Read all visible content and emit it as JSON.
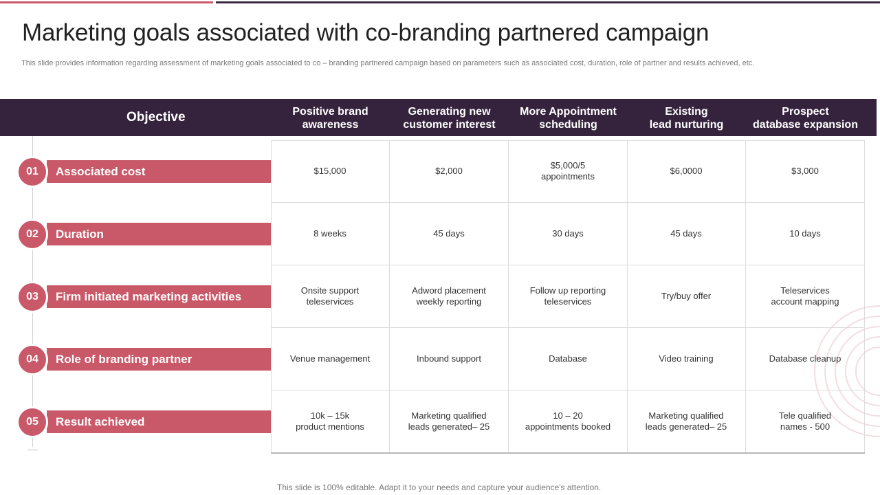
{
  "slide": {
    "title": "Marketing goals associated with co-branding partnered campaign",
    "subtitle": "This slide provides information regarding assessment of marketing goals associated to co – branding partnered campaign based on parameters such as associated cost, duration, role of partner and results achieved, etc.",
    "footer": "This slide is 100% editable. Adapt it to your needs and capture your audience's attention."
  },
  "table": {
    "objective_label": "Objective",
    "columns": [
      "Positive brand\nawareness",
      "Generating new\ncustomer interest",
      "More Appointment\nscheduling",
      "Existing\nlead  nurturing",
      "Prospect\ndatabase expansion"
    ],
    "rows": [
      {
        "num": "01",
        "label": "Associated cost",
        "cells": [
          "$15,000",
          "$2,000",
          "$5,000/5\nappointments",
          "$6,0000",
          "$3,000"
        ]
      },
      {
        "num": "02",
        "label": "Duration",
        "cells": [
          "8 weeks",
          "45 days",
          "30 days",
          "45 days",
          "10 days"
        ]
      },
      {
        "num": "03",
        "label": "Firm initiated marketing activities",
        "cells": [
          "Onsite support\nteleservices",
          "Adword  placement\nweekly reporting",
          "Follow up reporting\nteleservices",
          "Try/buy offer",
          "Teleservices\naccount mapping"
        ]
      },
      {
        "num": "04",
        "label": "Role of branding partner",
        "cells": [
          "Venue management",
          "Inbound  support",
          "Database",
          "Video training",
          "Database cleanup"
        ]
      },
      {
        "num": "05",
        "label": "Result achieved",
        "cells": [
          "10k – 15k\nproduct mentions",
          "Marketing qualified\nleads generated–  25",
          "10 – 20\nappointments booked",
          "Marketing qualified\nleads generated–  25",
          "Tele qualified\nnames - 500"
        ]
      }
    ]
  },
  "colors": {
    "accent": "#c95868",
    "header_bg": "#35223d"
  }
}
